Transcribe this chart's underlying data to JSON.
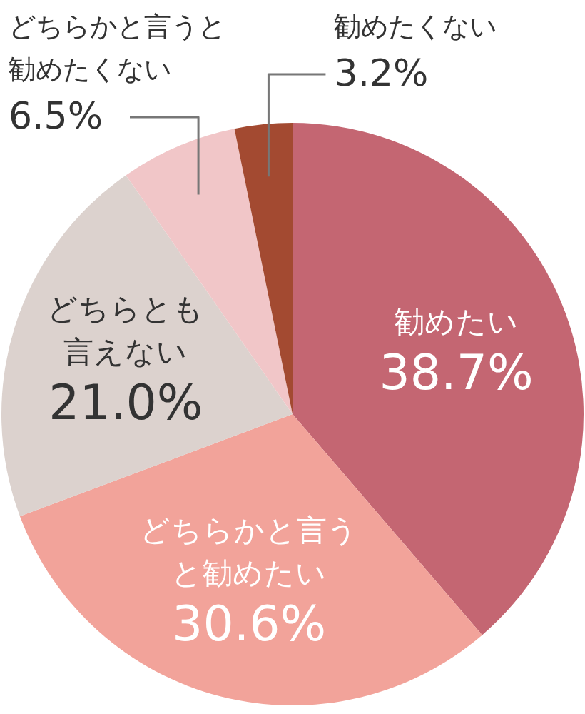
{
  "chart_data": {
    "type": "pie",
    "categories": [
      "勧めたい",
      "どちらかと言うと勧めたい",
      "どちらとも言えない",
      "どちらかと言うと勧めたくない",
      "勧めたくない"
    ],
    "values": [
      38.7,
      30.6,
      21.0,
      6.5,
      3.2
    ],
    "colors": [
      "#c46672",
      "#f2a39a",
      "#dcd2ce",
      "#f1c6c8",
      "#a34a31"
    ],
    "value_labels": [
      "38.7%",
      "30.6%",
      "21.0%",
      "6.5%",
      "3.2%"
    ]
  }
}
